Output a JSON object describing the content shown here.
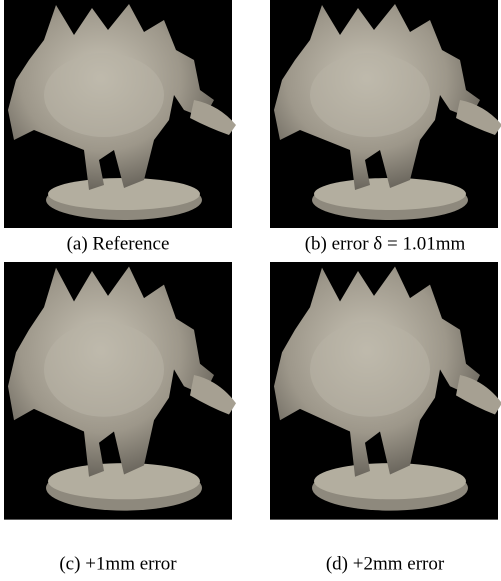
{
  "figure": {
    "panels": [
      {
        "caption": "(a) Reference"
      },
      {
        "caption": "(b) error δ = 1.01mm"
      },
      {
        "caption": "(c) +1mm error"
      },
      {
        "caption": "(d) +2mm error"
      }
    ]
  }
}
